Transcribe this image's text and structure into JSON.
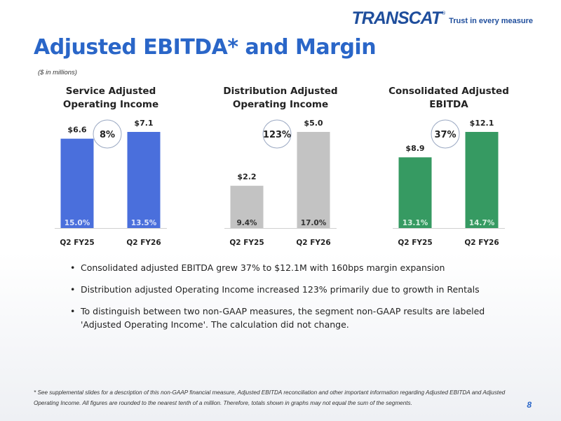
{
  "header": {
    "logo_text": "TRANSCAT",
    "logo_mark": "®",
    "tagline": "Trust in every measure",
    "title": "Adjusted EBITDA* and Margin",
    "units_note": "($ in millions)"
  },
  "chart_data": [
    {
      "type": "bar",
      "title": "Service Adjusted Operating Income",
      "title_lines": [
        "Service Adjusted",
        "Operating Income"
      ],
      "categories": [
        "Q2 FY25",
        "Q2 FY26"
      ],
      "values": [
        6.6,
        7.1
      ],
      "value_labels": [
        "$6.6",
        "$7.1"
      ],
      "margin_labels": [
        "15.0%",
        "13.5%"
      ],
      "growth_label": "8%",
      "color": "#4a6fdc",
      "margin_label_color": "#dbe3fb",
      "ylim": [
        0,
        7.1
      ]
    },
    {
      "type": "bar",
      "title": "Distribution Adjusted Operating Income",
      "title_lines": [
        "Distribution Adjusted",
        "Operating Income"
      ],
      "categories": [
        "Q2 FY25",
        "Q2 FY26"
      ],
      "values": [
        2.2,
        5.0
      ],
      "value_labels": [
        "$2.2",
        "$5.0"
      ],
      "margin_labels": [
        "9.4%",
        "17.0%"
      ],
      "growth_label": "123%",
      "color": "#c3c3c3",
      "margin_label_color": "#333333",
      "ylim": [
        0,
        5.0
      ]
    },
    {
      "type": "bar",
      "title": "Consolidated Adjusted EBITDA",
      "title_lines": [
        "Consolidated Adjusted",
        "EBITDA"
      ],
      "categories": [
        "Q2 FY25",
        "Q2 FY26"
      ],
      "values": [
        8.9,
        12.1
      ],
      "value_labels": [
        "$8.9",
        "$12.1"
      ],
      "margin_labels": [
        "13.1%",
        "14.7%"
      ],
      "growth_label": "37%",
      "color": "#369a62",
      "margin_label_color": "#d6f0df",
      "ylim": [
        0,
        12.1
      ]
    }
  ],
  "bullets": [
    "Consolidated adjusted EBITDA grew 37% to $12.1M with 160bps margin expansion",
    "Distribution adjusted Operating Income increased 123% primarily due to growth in Rentals",
    "To distinguish between two non-GAAP measures, the segment non-GAAP results are labeled 'Adjusted Operating Income'. The calculation did not change."
  ],
  "footnote": "* See supplemental slides for a description of this non-GAAP financial measure, Adjusted EBITDA reconciliation and other important information regarding Adjusted EBITDA and Adjusted Operating Income. All figures are rounded to the nearest tenth of a million. Therefore, totals shown in graphs may not equal the sum of the segments.",
  "page_number": "8"
}
